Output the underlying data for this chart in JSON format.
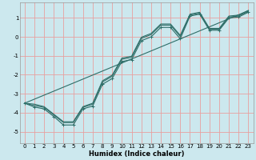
{
  "title": "",
  "xlabel": "Humidex (Indice chaleur)",
  "bg_color": "#cce8ee",
  "grid_color_major": "#e8a0a0",
  "grid_color_minor": "#e8c8c8",
  "line_color": "#2e6e68",
  "xlim": [
    -0.5,
    23.5
  ],
  "ylim": [
    -5.6,
    1.8
  ],
  "xticks": [
    0,
    1,
    2,
    3,
    4,
    5,
    6,
    7,
    8,
    9,
    10,
    11,
    12,
    13,
    14,
    15,
    16,
    17,
    18,
    19,
    20,
    21,
    22,
    23
  ],
  "yticks": [
    -5,
    -4,
    -3,
    -2,
    -1,
    0,
    1
  ],
  "line1_x": [
    0,
    1,
    2,
    3,
    4,
    5,
    6,
    7,
    8,
    9,
    10,
    11,
    12,
    13,
    14,
    15,
    16,
    17,
    18,
    19,
    20,
    21,
    22,
    23
  ],
  "line1_y": [
    -3.5,
    -3.7,
    -3.8,
    -4.2,
    -4.65,
    -4.65,
    -3.8,
    -3.65,
    -2.5,
    -2.2,
    -1.3,
    -1.2,
    -0.2,
    0.0,
    0.5,
    0.5,
    -0.1,
    1.1,
    1.2,
    0.35,
    0.35,
    1.0,
    1.05,
    1.3
  ],
  "line2_x": [
    0,
    1,
    2,
    3,
    4,
    5,
    6,
    7,
    8,
    9,
    10,
    11,
    12,
    13,
    14,
    15,
    16,
    17,
    18,
    19,
    20,
    21,
    22,
    23
  ],
  "line2_y": [
    -3.5,
    -3.62,
    -3.72,
    -4.12,
    -4.52,
    -4.52,
    -3.72,
    -3.55,
    -2.38,
    -2.08,
    -1.18,
    -1.08,
    -0.08,
    0.12,
    0.62,
    0.62,
    0.02,
    1.15,
    1.25,
    0.4,
    0.4,
    1.05,
    1.1,
    1.35
  ],
  "line3_x": [
    0,
    1,
    2,
    3,
    4,
    5,
    6,
    7,
    8,
    9,
    10,
    11,
    12,
    13,
    14,
    15,
    16,
    17,
    18,
    19,
    20,
    21,
    22,
    23
  ],
  "line3_y": [
    -3.5,
    -3.55,
    -3.68,
    -4.08,
    -4.48,
    -4.48,
    -3.68,
    -3.5,
    -2.32,
    -2.02,
    -1.12,
    -1.02,
    -0.02,
    0.18,
    0.68,
    0.68,
    0.08,
    1.2,
    1.3,
    0.45,
    0.45,
    1.1,
    1.15,
    1.4
  ],
  "line4_x": [
    0,
    23
  ],
  "line4_y": [
    -3.5,
    1.38
  ],
  "xlabel_fontsize": 6,
  "tick_fontsize": 5
}
